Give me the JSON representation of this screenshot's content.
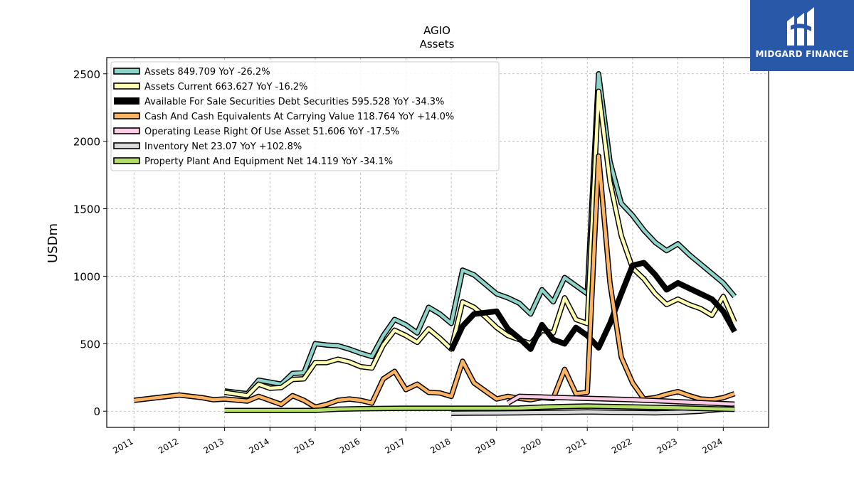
{
  "branding": {
    "logo_text": "MIDGARD FINANCE",
    "logo_color": "#2a58a8"
  },
  "chart_data": {
    "type": "line",
    "title": "AGIO",
    "subtitle": "Assets",
    "ylabel": "USDm",
    "xlabel": "",
    "xlim": [
      2010.4,
      2025.0
    ],
    "ylim": [
      -120,
      2620
    ],
    "yticks": [
      0,
      500,
      1000,
      1500,
      2000,
      2500
    ],
    "xticks": [
      2011,
      2012,
      2013,
      2014,
      2015,
      2016,
      2017,
      2018,
      2019,
      2020,
      2021,
      2022,
      2023,
      2024
    ],
    "grid": true,
    "legend_position": "top-left",
    "series": [
      {
        "name": "Assets  849.709 YoY -26.2%",
        "color": "#8dd3c7",
        "x": [
          2013.0,
          2013.5,
          2013.75,
          2014.0,
          2014.25,
          2014.5,
          2014.75,
          2015.0,
          2015.25,
          2015.5,
          2015.75,
          2016.0,
          2016.25,
          2016.5,
          2016.75,
          2017.0,
          2017.25,
          2017.5,
          2017.75,
          2018.0,
          2018.25,
          2018.5,
          2018.75,
          2019.0,
          2019.25,
          2019.5,
          2019.75,
          2020.0,
          2020.25,
          2020.5,
          2020.75,
          2021.0,
          2021.25,
          2021.5,
          2021.75,
          2022.0,
          2022.25,
          2022.5,
          2022.75,
          2023.0,
          2023.25,
          2023.5,
          2023.75,
          2024.0,
          2024.25
        ],
        "values": [
          150,
          130,
          230,
          215,
          200,
          280,
          285,
          500,
          490,
          485,
          460,
          430,
          405,
          560,
          680,
          640,
          580,
          770,
          720,
          650,
          1045,
          1010,
          940,
          870,
          840,
          800,
          720,
          900,
          810,
          990,
          930,
          870,
          2500,
          1850,
          1540,
          1450,
          1340,
          1250,
          1190,
          1240,
          1160,
          1090,
          1020,
          950,
          850
        ]
      },
      {
        "name": "Assets Current  663.627 YoY -16.2%",
        "color": "#ffffb3",
        "x": [
          2013.0,
          2013.5,
          2013.75,
          2014.0,
          2014.25,
          2014.5,
          2014.75,
          2015.0,
          2015.25,
          2015.5,
          2015.75,
          2016.0,
          2016.25,
          2016.5,
          2016.75,
          2017.0,
          2017.25,
          2017.5,
          2017.75,
          2018.0,
          2018.25,
          2018.5,
          2018.75,
          2019.0,
          2019.25,
          2019.5,
          2019.75,
          2020.0,
          2020.25,
          2020.5,
          2020.75,
          2021.0,
          2021.25,
          2021.5,
          2021.75,
          2022.0,
          2022.25,
          2022.5,
          2022.75,
          2023.0,
          2023.25,
          2023.5,
          2023.75,
          2024.0,
          2024.25
        ],
        "values": [
          140,
          115,
          200,
          170,
          175,
          235,
          240,
          360,
          360,
          385,
          365,
          330,
          320,
          490,
          600,
          560,
          510,
          610,
          540,
          460,
          810,
          770,
          700,
          620,
          560,
          530,
          500,
          600,
          580,
          840,
          680,
          650,
          2370,
          1700,
          1300,
          1060,
          980,
          870,
          790,
          830,
          790,
          760,
          710,
          850,
          660
        ]
      },
      {
        "name": "Available For Sale Securities Debt Securities  595.528 YoY -34.3%",
        "color": "#000000",
        "x": [
          2018.0,
          2018.25,
          2018.5,
          2018.75,
          2019.0,
          2019.25,
          2019.5,
          2019.75,
          2020.0,
          2020.25,
          2020.5,
          2020.75,
          2021.0,
          2021.25,
          2021.5,
          2021.75,
          2022.0,
          2022.25,
          2022.5,
          2022.75,
          2023.0,
          2023.25,
          2023.5,
          2023.75,
          2024.0,
          2024.25
        ],
        "values": [
          450,
          630,
          720,
          730,
          740,
          610,
          540,
          460,
          640,
          530,
          500,
          620,
          560,
          470,
          650,
          870,
          1080,
          1100,
          1010,
          900,
          950,
          910,
          870,
          830,
          740,
          590
        ]
      },
      {
        "name": "Cash And Cash Equivalents At Carrying Value  118.764 YoY +14.0%",
        "color": "#fdb462",
        "x": [
          2011.0,
          2012.0,
          2012.5,
          2012.75,
          2013.0,
          2013.5,
          2013.75,
          2014.0,
          2014.25,
          2014.5,
          2014.75,
          2015.0,
          2015.25,
          2015.5,
          2015.75,
          2016.0,
          2016.25,
          2016.5,
          2016.75,
          2017.0,
          2017.25,
          2017.5,
          2017.75,
          2018.0,
          2018.25,
          2018.5,
          2018.75,
          2019.0,
          2019.25,
          2019.5,
          2019.75,
          2020.0,
          2020.25,
          2020.5,
          2020.75,
          2021.0,
          2021.25,
          2021.5,
          2021.75,
          2022.0,
          2022.25,
          2022.5,
          2022.75,
          2023.0,
          2023.25,
          2023.5,
          2023.75,
          2024.0,
          2024.25
        ],
        "values": [
          80,
          120,
          100,
          85,
          90,
          75,
          110,
          80,
          50,
          115,
          80,
          30,
          50,
          80,
          90,
          80,
          60,
          240,
          295,
          160,
          200,
          140,
          135,
          110,
          370,
          210,
          150,
          90,
          110,
          95,
          85,
          100,
          95,
          310,
          130,
          140,
          1890,
          950,
          400,
          210,
          90,
          100,
          125,
          145,
          115,
          90,
          85,
          100,
          130
        ]
      },
      {
        "name": "Operating Lease Right Of Use Asset  51.606 YoY -17.5%",
        "color": "#fccde5",
        "x": [
          2019.25,
          2019.5,
          2020.0,
          2020.5,
          2021.0,
          2021.5,
          2022.0,
          2022.5,
          2023.0,
          2023.5,
          2024.0,
          2024.25
        ],
        "values": [
          60,
          110,
          105,
          100,
          95,
          90,
          85,
          78,
          70,
          63,
          56,
          52
        ]
      },
      {
        "name": "Inventory Net  23.07 YoY +102.8%",
        "color": "#d9d9d9",
        "x": [
          2018.0,
          2018.5,
          2019.0,
          2019.5,
          2020.0,
          2020.5,
          2021.0,
          2021.5,
          2022.0,
          2022.5,
          2023.0,
          2023.5,
          2024.0,
          2024.25
        ],
        "values": [
          -15,
          -14,
          -13,
          -12,
          -10,
          -8,
          -5,
          -8,
          -10,
          -12,
          -8,
          0,
          15,
          23
        ]
      },
      {
        "name": "Property Plant And Equipment Net  14.119 YoY -34.1%",
        "color": "#b3de69",
        "x": [
          2013.0,
          2014.0,
          2015.0,
          2015.5,
          2016.0,
          2016.5,
          2017.0,
          2017.5,
          2018.0,
          2018.5,
          2019.0,
          2019.5,
          2020.0,
          2020.5,
          2021.0,
          2021.5,
          2022.0,
          2022.5,
          2023.0,
          2023.5,
          2024.0,
          2024.25
        ],
        "values": [
          5,
          5,
          6,
          15,
          18,
          20,
          22,
          22,
          22,
          22,
          22,
          23,
          30,
          35,
          38,
          35,
          32,
          28,
          25,
          20,
          16,
          14
        ]
      }
    ]
  }
}
